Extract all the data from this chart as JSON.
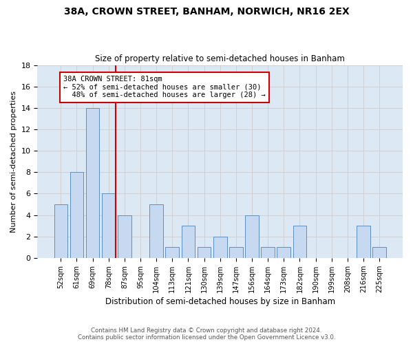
{
  "title1": "38A, CROWN STREET, BANHAM, NORWICH, NR16 2EX",
  "title2": "Size of property relative to semi-detached houses in Banham",
  "xlabel": "Distribution of semi-detached houses by size in Banham",
  "ylabel": "Number of semi-detached properties",
  "categories": [
    "52sqm",
    "61sqm",
    "69sqm",
    "78sqm",
    "87sqm",
    "95sqm",
    "104sqm",
    "113sqm",
    "121sqm",
    "130sqm",
    "139sqm",
    "147sqm",
    "156sqm",
    "164sqm",
    "173sqm",
    "182sqm",
    "190sqm",
    "199sqm",
    "208sqm",
    "216sqm",
    "225sqm"
  ],
  "values": [
    5,
    8,
    14,
    6,
    4,
    0,
    5,
    1,
    3,
    1,
    2,
    1,
    4,
    1,
    1,
    3,
    0,
    0,
    0,
    3,
    1
  ],
  "bar_color": "#c6d9f0",
  "bar_edge_color": "#5a8fc2",
  "subject_line_index": 3,
  "subject_label": "38A CROWN STREET: 81sqm",
  "pct_smaller": 52,
  "n_smaller": 30,
  "pct_larger": 48,
  "n_larger": 28,
  "annotation_box_color": "#cc0000",
  "ylim": [
    0,
    18
  ],
  "yticks": [
    0,
    2,
    4,
    6,
    8,
    10,
    12,
    14,
    16,
    18
  ],
  "footer": "Contains HM Land Registry data © Crown copyright and database right 2024.\nContains public sector information licensed under the Open Government Licence v3.0.",
  "background_color": "#ffffff",
  "grid_color": "#cccccc",
  "bar_width": 0.85
}
